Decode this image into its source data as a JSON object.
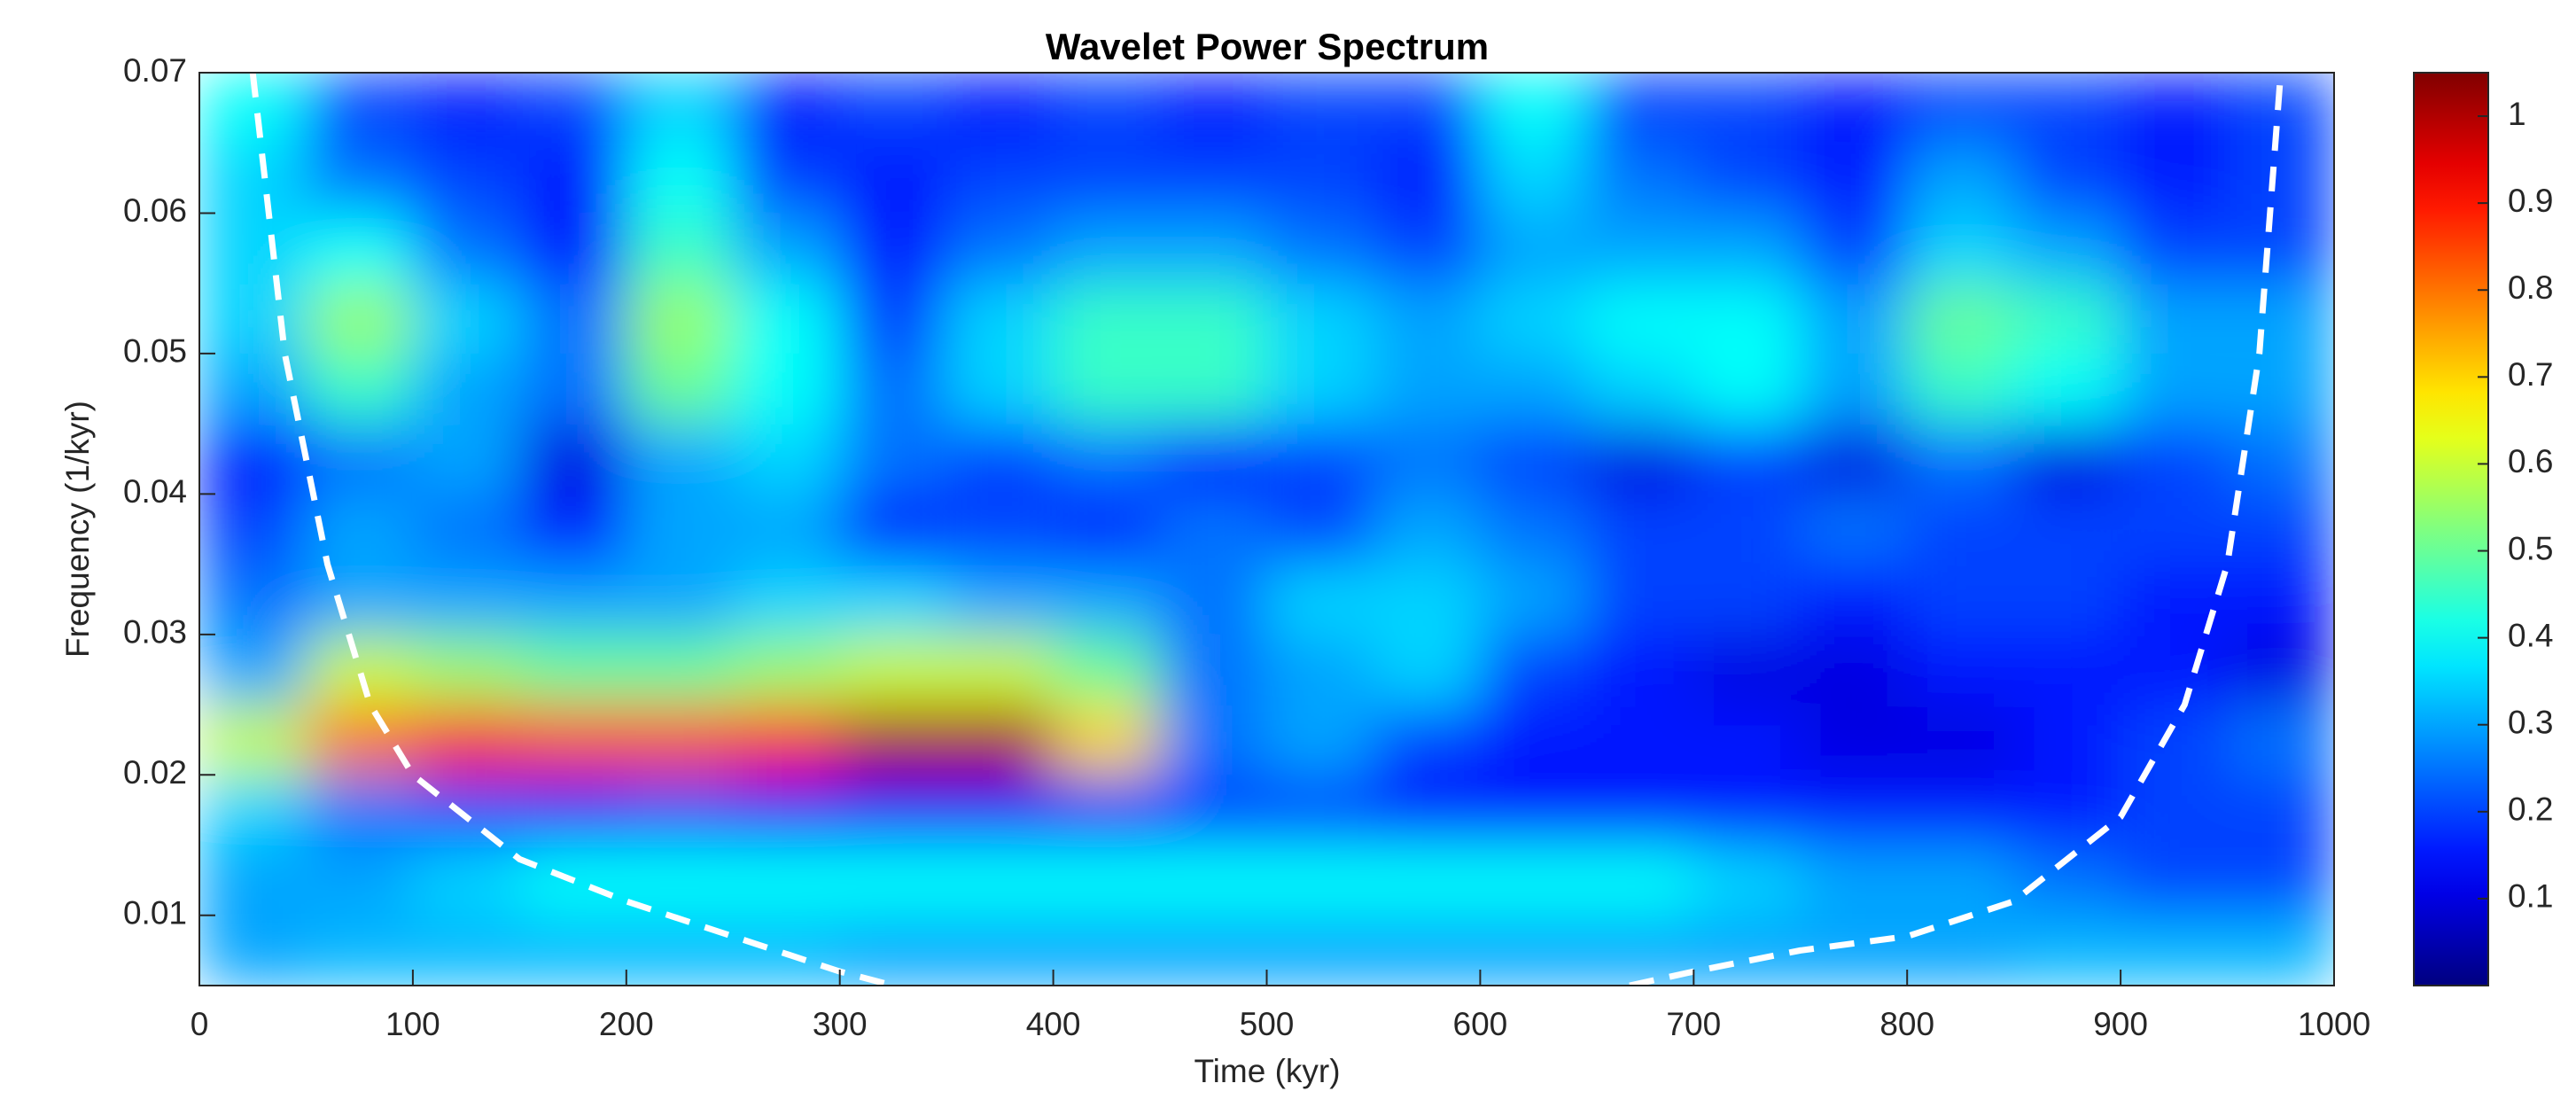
{
  "chart_data": {
    "type": "heatmap",
    "title": "Wavelet Power Spectrum",
    "xlabel": "Time (kyr)",
    "ylabel": "Frequency (1/kyr)",
    "x_edges": [
      0,
      50,
      100,
      150,
      200,
      250,
      300,
      350,
      400,
      450,
      500,
      550,
      600,
      650,
      700,
      750,
      800,
      850,
      900,
      950,
      1000
    ],
    "y_edges": [
      0.005,
      0.01,
      0.015,
      0.02,
      0.025,
      0.03,
      0.035,
      0.04,
      0.045,
      0.05,
      0.055,
      0.06,
      0.065,
      0.07
    ],
    "z": [
      [
        0.3,
        0.32,
        0.32,
        0.32,
        0.32,
        0.32,
        0.3,
        0.3,
        0.3,
        0.3,
        0.3,
        0.3,
        0.3,
        0.3,
        0.3,
        0.3,
        0.3,
        0.32,
        0.32,
        0.32
      ],
      [
        0.3,
        0.3,
        0.35,
        0.4,
        0.4,
        0.4,
        0.4,
        0.4,
        0.4,
        0.4,
        0.4,
        0.4,
        0.4,
        0.4,
        0.35,
        0.3,
        0.3,
        0.25,
        0.2,
        0.2
      ],
      [
        0.35,
        0.25,
        0.2,
        0.15,
        0.2,
        0.15,
        0.15,
        0.15,
        0.15,
        0.2,
        0.2,
        0.15,
        0.15,
        0.15,
        0.15,
        0.15,
        0.15,
        0.15,
        0.2,
        0.2
      ],
      [
        0.6,
        0.8,
        0.9,
        0.85,
        0.85,
        0.9,
        1.0,
        1.0,
        0.7,
        0.25,
        0.3,
        0.2,
        0.15,
        0.15,
        0.15,
        0.1,
        0.1,
        0.15,
        0.2,
        0.25
      ],
      [
        0.3,
        0.6,
        0.55,
        0.5,
        0.5,
        0.55,
        0.6,
        0.6,
        0.5,
        0.25,
        0.3,
        0.35,
        0.2,
        0.15,
        0.1,
        0.1,
        0.15,
        0.15,
        0.15,
        0.1
      ],
      [
        0.25,
        0.3,
        0.3,
        0.3,
        0.3,
        0.35,
        0.35,
        0.3,
        0.3,
        0.25,
        0.35,
        0.35,
        0.3,
        0.2,
        0.2,
        0.15,
        0.2,
        0.2,
        0.15,
        0.15
      ],
      [
        0.2,
        0.3,
        0.25,
        0.15,
        0.3,
        0.3,
        0.15,
        0.2,
        0.15,
        0.25,
        0.2,
        0.3,
        0.25,
        0.2,
        0.2,
        0.25,
        0.2,
        0.2,
        0.2,
        0.2
      ],
      [
        0.15,
        0.25,
        0.3,
        0.1,
        0.3,
        0.35,
        0.25,
        0.2,
        0.25,
        0.15,
        0.2,
        0.25,
        0.2,
        0.1,
        0.2,
        0.1,
        0.25,
        0.1,
        0.2,
        0.25
      ],
      [
        0.3,
        0.45,
        0.3,
        0.25,
        0.5,
        0.4,
        0.25,
        0.35,
        0.45,
        0.45,
        0.35,
        0.3,
        0.3,
        0.35,
        0.4,
        0.3,
        0.45,
        0.4,
        0.3,
        0.3
      ],
      [
        0.35,
        0.55,
        0.35,
        0.25,
        0.55,
        0.4,
        0.2,
        0.35,
        0.45,
        0.45,
        0.35,
        0.3,
        0.35,
        0.4,
        0.4,
        0.3,
        0.5,
        0.45,
        0.3,
        0.3
      ],
      [
        0.35,
        0.4,
        0.25,
        0.15,
        0.45,
        0.3,
        0.15,
        0.25,
        0.3,
        0.3,
        0.25,
        0.2,
        0.3,
        0.3,
        0.3,
        0.2,
        0.35,
        0.3,
        0.2,
        0.2
      ],
      [
        0.35,
        0.25,
        0.2,
        0.15,
        0.4,
        0.2,
        0.15,
        0.2,
        0.2,
        0.2,
        0.2,
        0.15,
        0.35,
        0.25,
        0.2,
        0.15,
        0.3,
        0.2,
        0.15,
        0.2
      ],
      [
        0.4,
        0.2,
        0.15,
        0.2,
        0.35,
        0.15,
        0.2,
        0.15,
        0.2,
        0.15,
        0.2,
        0.2,
        0.4,
        0.2,
        0.2,
        0.15,
        0.2,
        0.2,
        0.15,
        0.2
      ]
    ],
    "colormap": "jet",
    "clim": [
      0,
      1.05
    ],
    "cticks": [
      0.1,
      0.2,
      0.3,
      0.4,
      0.5,
      0.6,
      0.7,
      0.8,
      0.9,
      1
    ],
    "xlim": [
      0,
      1000
    ],
    "xticks": [
      0,
      100,
      200,
      300,
      400,
      500,
      600,
      700,
      800,
      900,
      1000
    ],
    "ylim": [
      0.005,
      0.07
    ],
    "yticks": [
      0.01,
      0.02,
      0.03,
      0.04,
      0.05,
      0.06,
      0.07
    ],
    "coi": {
      "color": "#ffffff",
      "x": [
        25,
        40,
        60,
        80,
        100,
        150,
        200,
        250,
        300,
        325,
        null,
        670,
        700,
        750,
        800,
        850,
        900,
        930,
        950,
        965,
        975
      ],
      "y": [
        0.07,
        0.05,
        0.035,
        0.025,
        0.02,
        0.014,
        0.011,
        0.0085,
        0.006,
        0.005,
        null,
        0.005,
        0.006,
        0.0075,
        0.0085,
        0.011,
        0.017,
        0.025,
        0.035,
        0.05,
        0.07
      ]
    }
  }
}
